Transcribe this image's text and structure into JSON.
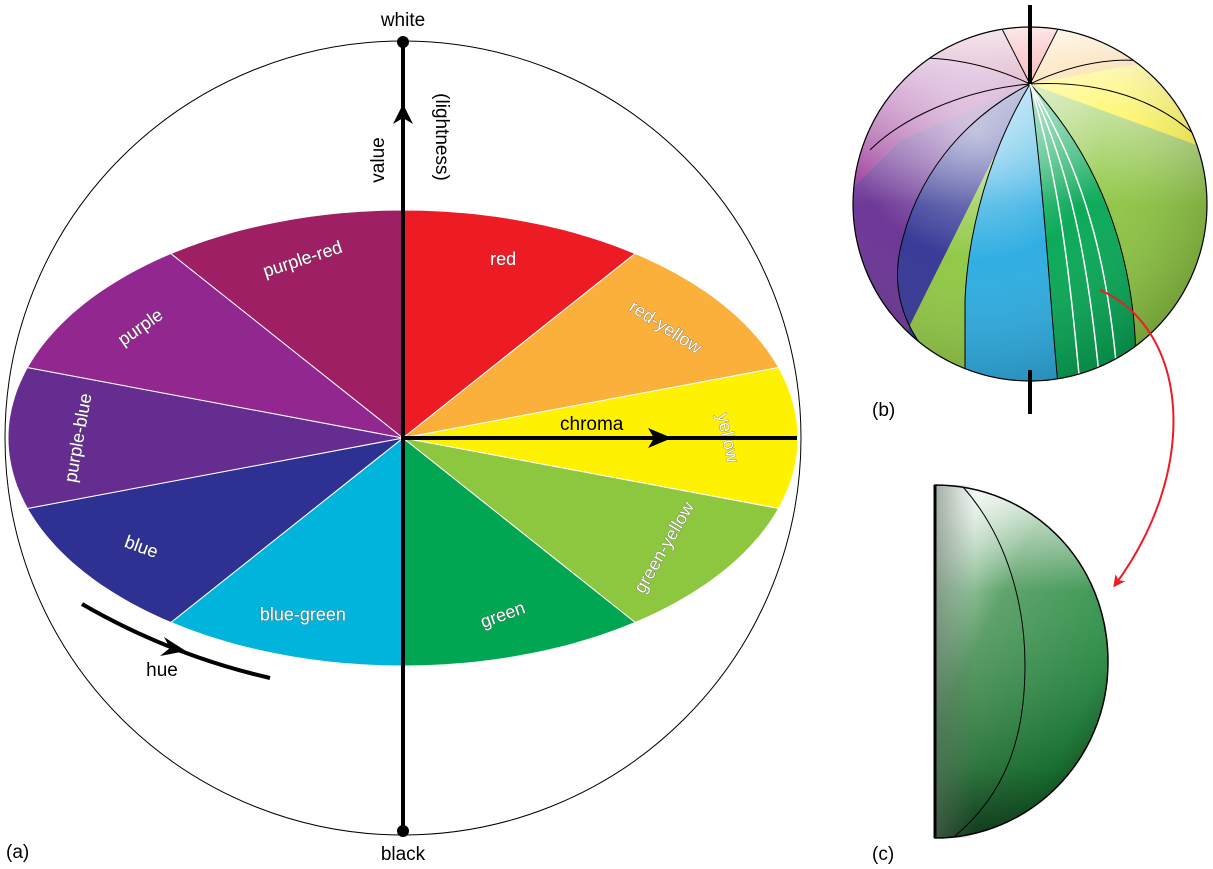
{
  "panel_labels": {
    "a": "(a)",
    "b": "(b)",
    "c": "(c)"
  },
  "axes": {
    "top": "white",
    "bottom": "black",
    "value": "value",
    "lightness": "(lightness)",
    "chroma": "chroma",
    "hue": "hue"
  },
  "hues": [
    {
      "name": "red",
      "color": "#ED1C24"
    },
    {
      "name": "red-yellow",
      "color": "#FBB03B"
    },
    {
      "name": "yellow",
      "color": "#FFF200"
    },
    {
      "name": "green-yellow",
      "color": "#8DC63F"
    },
    {
      "name": "green",
      "color": "#00A651"
    },
    {
      "name": "blue-green",
      "color": "#00B4DC"
    },
    {
      "name": "blue",
      "color": "#2E3192"
    },
    {
      "name": "purple-blue",
      "color": "#662D91"
    },
    {
      "name": "purple",
      "color": "#92278F"
    },
    {
      "name": "purple-red",
      "color": "#9E1F63"
    }
  ],
  "colors": {
    "arrow_red": "#ED1C24",
    "section_green": "#1E8A3C",
    "sphere_light_blue": "#27AAE1"
  }
}
